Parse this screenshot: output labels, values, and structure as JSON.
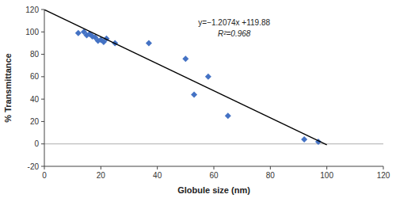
{
  "chart_data": {
    "type": "scatter",
    "xlabel": "Globule size (nm)",
    "ylabel": "% Transmittance",
    "annotations": [
      "y=−1.2074x +119.88",
      "R²=0.968"
    ],
    "series": [
      {
        "type": "scatter",
        "color": "#4472C4",
        "marker": "diamond",
        "x": [
          12,
          14,
          15,
          16,
          17,
          18,
          19,
          20,
          21,
          22,
          25,
          37,
          50,
          53,
          58,
          65,
          92,
          97
        ],
        "values": [
          99,
          100,
          97,
          98,
          96,
          95,
          92,
          93,
          91,
          94,
          90,
          90,
          76,
          44,
          60,
          25,
          4,
          2
        ]
      },
      {
        "type": "line",
        "color": "#000000",
        "line_style": "solid",
        "x": [
          0,
          100
        ],
        "values": [
          119.88,
          -0.86
        ]
      }
    ],
    "xlim": [
      0,
      120
    ],
    "ylim": [
      -20,
      120
    ],
    "xticks": [
      0,
      20,
      40,
      60,
      80,
      100,
      120
    ],
    "yticks": [
      -20,
      0,
      20,
      40,
      60,
      80,
      100,
      120
    ],
    "grid": false
  }
}
